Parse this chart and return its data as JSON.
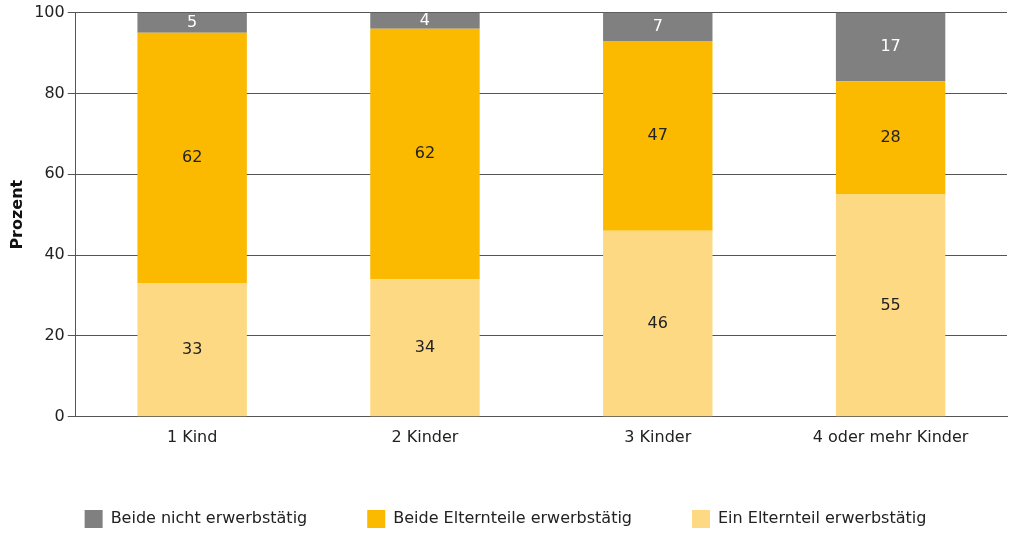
{
  "chart_data": {
    "type": "bar",
    "stacked": true,
    "ylabel": "Prozent",
    "categories": [
      "1 Kind",
      "2 Kinder",
      "3 Kinder",
      "4 oder mehr Kinder"
    ],
    "series": [
      {
        "name": "Ein Elternteil erwerbstätig",
        "color": "#fed983",
        "values": [
          33,
          34,
          46,
          55
        ]
      },
      {
        "name": "Beide Elternteile erwerbstätig",
        "color": "#fbb900",
        "values": [
          62,
          62,
          47,
          28
        ]
      },
      {
        "name": "Beide nicht erwerbstätig",
        "color": "#808080",
        "values": [
          5,
          4,
          7,
          17
        ]
      }
    ],
    "ylim": [
      0,
      100
    ],
    "yticks": [
      0,
      20,
      40,
      60,
      80,
      100
    ],
    "grid": "y",
    "legend": "bottom",
    "data_labels": true
  }
}
